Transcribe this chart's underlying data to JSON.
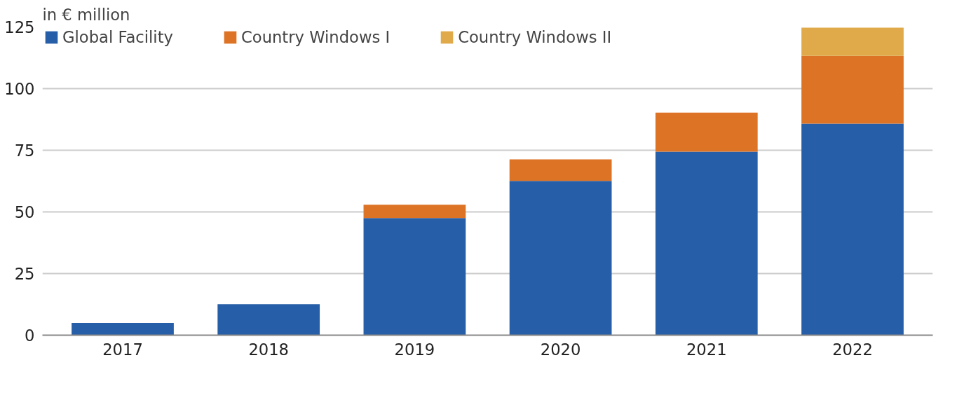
{
  "chart_data": {
    "type": "bar",
    "stacked": true,
    "ylabel": "in € million",
    "categories": [
      "2017",
      "2018",
      "2019",
      "2020",
      "2021",
      "2022"
    ],
    "series": [
      {
        "name": "Global Facility",
        "color": "#265ea8",
        "values": [
          5.0,
          12.6,
          47.5,
          62.6,
          74.4,
          85.8
        ]
      },
      {
        "name": "Country Windows I",
        "color": "#dd7325",
        "values": [
          null,
          null,
          5.4,
          8.7,
          15.9,
          27.5
        ]
      },
      {
        "name": "Country Windows II",
        "color": "#e0aa4a",
        "values": [
          null,
          null,
          null,
          null,
          null,
          11.4
        ]
      }
    ],
    "ylim": [
      0,
      125
    ],
    "yticks": [
      0,
      25,
      50,
      75,
      100,
      125
    ],
    "grid": "y",
    "legend": "top"
  }
}
